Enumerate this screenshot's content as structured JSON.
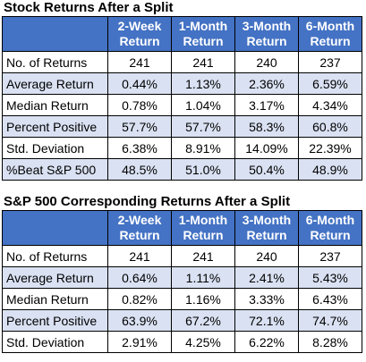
{
  "tables": [
    {
      "title": "Stock Returns After a Split",
      "headers": [
        "",
        "2-Week\nReturn",
        "1-Month\nReturn",
        "3-Month\nReturn",
        "6-Month\nReturn"
      ],
      "rows": [
        {
          "label": "No. of Returns",
          "values": [
            "241",
            "241",
            "240",
            "237"
          ]
        },
        {
          "label": "Average Return",
          "values": [
            "0.44%",
            "1.13%",
            "2.36%",
            "6.59%"
          ]
        },
        {
          "label": "Median Return",
          "values": [
            "0.78%",
            "1.04%",
            "3.17%",
            "4.34%"
          ]
        },
        {
          "label": "Percent Positive",
          "values": [
            "57.7%",
            "57.7%",
            "58.3%",
            "60.8%"
          ]
        },
        {
          "label": "Std. Deviation",
          "values": [
            "6.38%",
            "8.91%",
            "14.09%",
            "22.39%"
          ]
        },
        {
          "label": "%Beat S&P 500",
          "values": [
            "48.5%",
            "51.0%",
            "50.4%",
            "48.9%"
          ]
        }
      ]
    },
    {
      "title": "S&P 500 Corresponding Returns After a Split",
      "headers": [
        "",
        "2-Week\nReturn",
        "1-Month\nReturn",
        "3-Month\nReturn",
        "6-Month\nReturn"
      ],
      "rows": [
        {
          "label": "No. of Returns",
          "values": [
            "241",
            "241",
            "240",
            "237"
          ]
        },
        {
          "label": "Average Return",
          "values": [
            "0.64%",
            "1.11%",
            "2.41%",
            "5.43%"
          ]
        },
        {
          "label": "Median Return",
          "values": [
            "0.82%",
            "1.16%",
            "3.33%",
            "6.43%"
          ]
        },
        {
          "label": "Percent Positive",
          "values": [
            "63.9%",
            "67.2%",
            "72.1%",
            "74.7%"
          ]
        },
        {
          "label": "Std. Deviation",
          "values": [
            "2.91%",
            "4.25%",
            "6.22%",
            "8.28%"
          ]
        }
      ]
    }
  ],
  "colors": {
    "header_bg": "#4472c4",
    "header_text": "#ffffff",
    "band_bg": "#d9e1f2",
    "row_bg": "#ffffff"
  }
}
